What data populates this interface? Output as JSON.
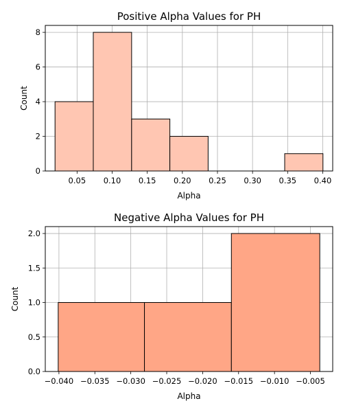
{
  "chart_data": [
    {
      "type": "bar",
      "title": "Positive Alpha Values for PH",
      "xlabel": "Alpha",
      "ylabel": "Count",
      "xlim": [
        0.0047,
        0.4142
      ],
      "ylim": [
        0,
        8.4
      ],
      "xticks": [
        0.05,
        0.1,
        0.15,
        0.2,
        0.25,
        0.3,
        0.35,
        0.4
      ],
      "xtick_labels": [
        "0.05",
        "0.10",
        "0.15",
        "0.20",
        "0.25",
        "0.30",
        "0.35",
        "0.40"
      ],
      "yticks": [
        0,
        2,
        4,
        6,
        8
      ],
      "ytick_labels": [
        "0",
        "2",
        "4",
        "6",
        "8"
      ],
      "bins": [
        {
          "x0": 0.0186,
          "x1": 0.0731,
          "count": 4
        },
        {
          "x0": 0.0731,
          "x1": 0.1277,
          "count": 8
        },
        {
          "x0": 0.1277,
          "x1": 0.1822,
          "count": 3
        },
        {
          "x0": 0.1822,
          "x1": 0.2367,
          "count": 2
        },
        {
          "x0": 0.2367,
          "x1": 0.2912,
          "count": 0
        },
        {
          "x0": 0.2912,
          "x1": 0.3458,
          "count": 0
        },
        {
          "x0": 0.3458,
          "x1": 0.4003,
          "count": 1
        }
      ],
      "bar_color": "#ffc6b2",
      "edge_color": "#000000",
      "grid": true
    },
    {
      "type": "bar",
      "title": "Negative Alpha Values for PH",
      "xlabel": "Alpha",
      "ylabel": "Count",
      "xlim": [
        -0.0419,
        -0.0019
      ],
      "ylim": [
        0,
        2.1
      ],
      "xticks": [
        -0.04,
        -0.035,
        -0.03,
        -0.025,
        -0.02,
        -0.015,
        -0.01,
        -0.005
      ],
      "xtick_labels": [
        "−0.040",
        "−0.035",
        "−0.030",
        "−0.025",
        "−0.020",
        "−0.015",
        "−0.010",
        "−0.005"
      ],
      "yticks": [
        0,
        0.5,
        1.0,
        1.5,
        2.0
      ],
      "ytick_labels": [
        "0.0",
        "0.5",
        "1.0",
        "1.5",
        "2.0"
      ],
      "bins": [
        {
          "x0": -0.0401,
          "x1": -0.0281,
          "count": 1
        },
        {
          "x0": -0.0281,
          "x1": -0.016,
          "count": 1
        },
        {
          "x0": -0.016,
          "x1": -0.0037,
          "count": 2
        }
      ],
      "bar_color": "#ffa686",
      "edge_color": "#000000",
      "grid": true
    }
  ]
}
